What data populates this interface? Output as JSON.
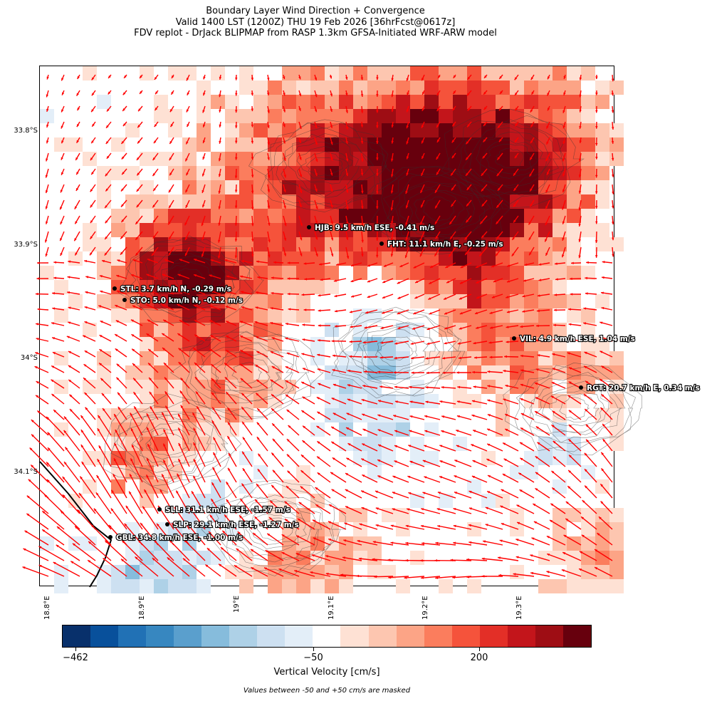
{
  "title": {
    "line1": "Boundary Layer Wind Direction + Convergence",
    "line2": "Valid 1400 LST (1200Z) THU 19 Feb 2026 [36hrFcst@0617z]",
    "line3": "FDV replot - DrJack BLIPMAP from RASP 1.3km GFSA-Initiated WRF-ARW model"
  },
  "axes": {
    "y_ticks": [
      "33.8°S",
      "33.9°S",
      "34°S",
      "34.1°S"
    ],
    "x_ticks": [
      "18.8°E",
      "18.9°E",
      "19°E",
      "19.1°E",
      "19.2°E",
      "19.3°E"
    ]
  },
  "stations": [
    {
      "id": "HJB",
      "label": "HJB: 9.5 km/h ESE, -0.41 m/s"
    },
    {
      "id": "FHT",
      "label": "FHT: 11.1 km/h E, -0.25 m/s"
    },
    {
      "id": "STL",
      "label": "STL: 3.7 km/h N, -0.29 m/s"
    },
    {
      "id": "STO",
      "label": "STO: 5.0 km/h N, -0.12 m/s"
    },
    {
      "id": "VIL",
      "label": "VIL: 4.9 km/h ESE, 1.04 m/s"
    },
    {
      "id": "RGT",
      "label": "RGT: 20.7 km/h E, 0.34 m/s"
    },
    {
      "id": "SLL",
      "label": "SLL: 31.1 km/h ESE, -1.57 m/s"
    },
    {
      "id": "SLP",
      "label": "SLP: 29.1 km/h ESE, -1.27 m/s"
    },
    {
      "id": "GBL",
      "label": "GBL: 34.8 km/h ESE, -1.00 m/s"
    }
  ],
  "colorbar": {
    "label": "Vertical Velocity [cm/s]",
    "ticks": [
      "−462",
      "−50",
      "200"
    ],
    "colors": [
      "#08306b",
      "#08509b",
      "#2171b5",
      "#3787c0",
      "#5a9fcd",
      "#86bcdc",
      "#aed1e7",
      "#cde0f1",
      "#e3eef8",
      "#ffffff",
      "#fee1d4",
      "#fdc6b0",
      "#fca486",
      "#fb7d5d",
      "#f5533b",
      "#e32f27",
      "#c3151b",
      "#9e0d14",
      "#67000d"
    ]
  },
  "mask_note": "Values between -50 and +50 cm/s are masked",
  "colors": {
    "wind_arrow": "#ff0000",
    "contour": "#333333",
    "coast": "#000000"
  }
}
